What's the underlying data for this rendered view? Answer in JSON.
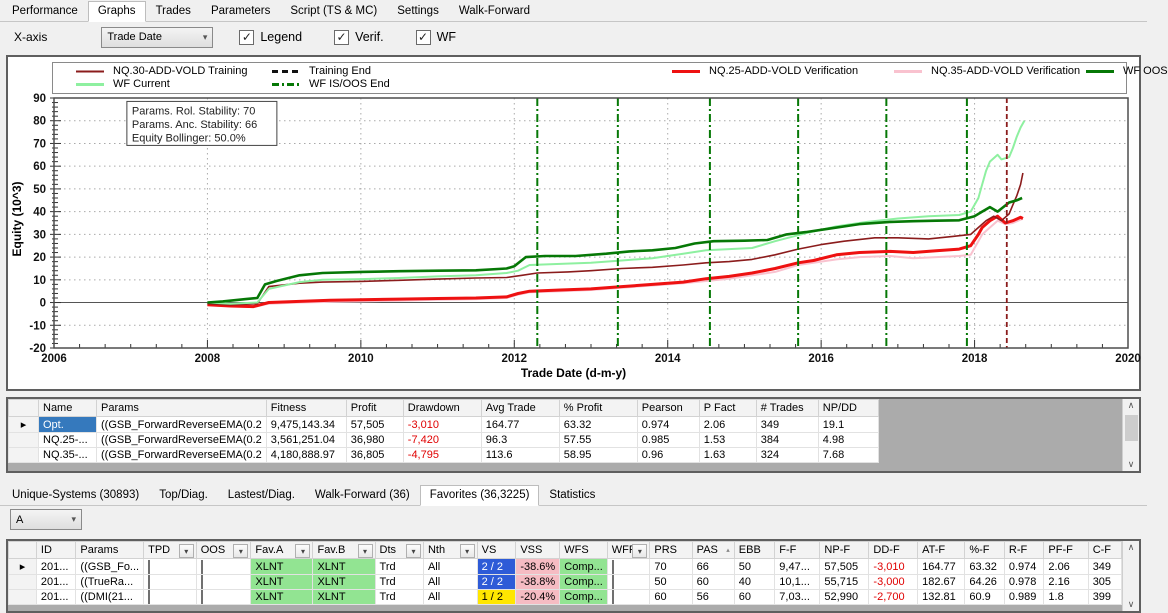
{
  "top_tabs": {
    "items": [
      "Performance",
      "Graphs",
      "Trades",
      "Parameters",
      "Script (TS & MC)",
      "Settings",
      "Walk-Forward"
    ],
    "active": "Graphs"
  },
  "toolbar": {
    "xaxis_label": "X-axis",
    "xaxis_value": "Trade Date",
    "checkboxes": [
      {
        "label": "Legend",
        "checked": true
      },
      {
        "label": "Verif.",
        "checked": true
      },
      {
        "label": "WF",
        "checked": true
      }
    ]
  },
  "chart_data": {
    "type": "line",
    "xlabel": "Trade Date (d-m-y)",
    "ylabel": "Equity (10^3)",
    "xlim": [
      2006,
      2020
    ],
    "ylim": [
      -20,
      90
    ],
    "x_ticks": [
      2006,
      2008,
      2010,
      2012,
      2014,
      2016,
      2018,
      2020
    ],
    "y_ticks": [
      -20,
      -10,
      0,
      10,
      20,
      30,
      40,
      50,
      60,
      70,
      80,
      90
    ],
    "grid": true,
    "legend_position": "top",
    "annotation": [
      "Params. Rol. Stability: 70",
      "Params. Anc. Stability: 66",
      "Equity Bollinger: 50.0%"
    ],
    "legend_rows": [
      [
        {
          "label": "NQ.30-ADD-VOLD Training",
          "color": "#8b1c1c",
          "dash": "",
          "w": 2
        },
        {
          "label": "Training End",
          "color": "#111111",
          "dash": "6,4",
          "w": 3
        },
        {
          "label": "NQ.25-ADD-VOLD Verification",
          "color": "#ee1111",
          "dash": "",
          "w": 3
        },
        {
          "label": "NQ.35-ADD-VOLD Verification",
          "color": "#f9c2cf",
          "dash": "",
          "w": 3
        },
        {
          "label": "WF OOS",
          "color": "#067806",
          "dash": "",
          "w": 3
        }
      ],
      [
        {
          "label": "WF Current",
          "color": "#8ef0a0",
          "dash": "",
          "w": 3
        },
        {
          "label": "WF IS/OOS End",
          "color": "#067806",
          "dash": "7,3,2,3",
          "w": 3
        }
      ]
    ],
    "vlines": {
      "wf_is_oos_end": {
        "x": [
          2012.3,
          2013.35,
          2014.55,
          2015.7,
          2016.85,
          2017.9
        ],
        "color": "#067806",
        "dash": "8,3,2,3"
      },
      "training_end": {
        "x": [
          2018.42
        ],
        "color": "#8b1c1c",
        "dash": "5,3"
      }
    },
    "series": [
      {
        "name": "NQ.35-ADD-VOLD Verification",
        "color": "#f9c2cf",
        "width": 2,
        "points": [
          [
            2008,
            -1
          ],
          [
            2008.3,
            -1.6
          ],
          [
            2008.6,
            -2
          ],
          [
            2008.8,
            -0.5
          ],
          [
            2009.2,
            0
          ],
          [
            2009.6,
            0.3
          ],
          [
            2010,
            0.5
          ],
          [
            2010.5,
            0.8
          ],
          [
            2011,
            1.2
          ],
          [
            2011.5,
            1.5
          ],
          [
            2011.9,
            2
          ],
          [
            2012.05,
            3.5
          ],
          [
            2012.2,
            4.5
          ],
          [
            2012.6,
            5
          ],
          [
            2013,
            5.5
          ],
          [
            2013.4,
            6.5
          ],
          [
            2013.8,
            7.5
          ],
          [
            2014.2,
            8.5
          ],
          [
            2014.5,
            9.5
          ],
          [
            2014.8,
            10.5
          ],
          [
            2015.1,
            12
          ],
          [
            2015.4,
            13.5
          ],
          [
            2015.7,
            16.5
          ],
          [
            2015.9,
            17.5
          ],
          [
            2016.2,
            19
          ],
          [
            2016.5,
            20
          ],
          [
            2016.9,
            20.5
          ],
          [
            2017.2,
            19.5
          ],
          [
            2017.5,
            20
          ],
          [
            2017.8,
            20.5
          ],
          [
            2017.95,
            21
          ],
          [
            2018.05,
            27
          ],
          [
            2018.1,
            30
          ],
          [
            2018.2,
            33
          ],
          [
            2018.3,
            36
          ],
          [
            2018.4,
            34.5
          ],
          [
            2018.5,
            35
          ],
          [
            2018.6,
            36.5
          ],
          [
            2018.63,
            36.8
          ]
        ]
      },
      {
        "name": "NQ.25-ADD-VOLD Verification",
        "color": "#ee1111",
        "width": 3,
        "points": [
          [
            2008,
            -1
          ],
          [
            2008.3,
            -1.5
          ],
          [
            2008.6,
            -1.8
          ],
          [
            2008.8,
            0
          ],
          [
            2009.2,
            0.5
          ],
          [
            2009.6,
            1
          ],
          [
            2010,
            1.2
          ],
          [
            2010.5,
            1.5
          ],
          [
            2011,
            1.8
          ],
          [
            2011.5,
            2
          ],
          [
            2011.9,
            2.5
          ],
          [
            2012.05,
            4
          ],
          [
            2012.2,
            5
          ],
          [
            2012.6,
            5.5
          ],
          [
            2013,
            6
          ],
          [
            2013.4,
            7
          ],
          [
            2013.8,
            8
          ],
          [
            2014.2,
            9
          ],
          [
            2014.5,
            10.5
          ],
          [
            2014.8,
            11.5
          ],
          [
            2015.1,
            13
          ],
          [
            2015.4,
            15
          ],
          [
            2015.7,
            17.5
          ],
          [
            2015.9,
            18.5
          ],
          [
            2016.2,
            21
          ],
          [
            2016.5,
            22
          ],
          [
            2016.9,
            22.5
          ],
          [
            2017.2,
            22
          ],
          [
            2017.5,
            22.8
          ],
          [
            2017.8,
            23.5
          ],
          [
            2017.95,
            25
          ],
          [
            2018.05,
            30
          ],
          [
            2018.1,
            33
          ],
          [
            2018.2,
            36
          ],
          [
            2018.3,
            38
          ],
          [
            2018.4,
            35
          ],
          [
            2018.5,
            36
          ],
          [
            2018.6,
            37.5
          ],
          [
            2018.63,
            37
          ]
        ]
      },
      {
        "name": "NQ.30-ADD-VOLD Training",
        "color": "#8b1c1c",
        "width": 1.6,
        "points": [
          [
            2008,
            -0.5
          ],
          [
            2008.3,
            -1
          ],
          [
            2008.65,
            -0.5
          ],
          [
            2008.8,
            7
          ],
          [
            2009.2,
            8.5
          ],
          [
            2009.5,
            9
          ],
          [
            2010,
            9.3
          ],
          [
            2010.5,
            9.8
          ],
          [
            2011,
            10.3
          ],
          [
            2011.5,
            10.8
          ],
          [
            2011.9,
            11
          ],
          [
            2012.1,
            12
          ],
          [
            2012.3,
            13
          ],
          [
            2012.7,
            13.5
          ],
          [
            2013,
            14
          ],
          [
            2013.4,
            15
          ],
          [
            2013.8,
            15.5
          ],
          [
            2014.2,
            16.5
          ],
          [
            2014.5,
            17.5
          ],
          [
            2014.8,
            18
          ],
          [
            2015.1,
            19
          ],
          [
            2015.4,
            21
          ],
          [
            2015.7,
            23.5
          ],
          [
            2016,
            25.5
          ],
          [
            2016.3,
            27
          ],
          [
            2016.7,
            28.5
          ],
          [
            2017,
            28.5
          ],
          [
            2017.4,
            28
          ],
          [
            2017.7,
            29
          ],
          [
            2017.95,
            30
          ],
          [
            2018.05,
            33
          ],
          [
            2018.15,
            36
          ],
          [
            2018.25,
            38
          ],
          [
            2018.35,
            36
          ],
          [
            2018.45,
            39
          ],
          [
            2018.5,
            43
          ],
          [
            2018.55,
            47
          ],
          [
            2018.6,
            52
          ],
          [
            2018.63,
            57
          ]
        ]
      },
      {
        "name": "WF Current",
        "color": "#8ef0a0",
        "width": 2,
        "points": [
          [
            2008,
            0
          ],
          [
            2008.3,
            -0.5
          ],
          [
            2008.65,
            0
          ],
          [
            2008.8,
            6
          ],
          [
            2009.2,
            9
          ],
          [
            2009.5,
            10
          ],
          [
            2010,
            10.3
          ],
          [
            2010.5,
            10.8
          ],
          [
            2011,
            11.5
          ],
          [
            2011.5,
            12
          ],
          [
            2011.9,
            13
          ],
          [
            2012.05,
            14
          ],
          [
            2012.2,
            16.5
          ],
          [
            2012.6,
            17
          ],
          [
            2013,
            17.5
          ],
          [
            2013.4,
            18.5
          ],
          [
            2013.8,
            19.5
          ],
          [
            2014.2,
            21.5
          ],
          [
            2014.5,
            23
          ],
          [
            2014.8,
            23.5
          ],
          [
            2015.1,
            24
          ],
          [
            2015.4,
            27
          ],
          [
            2015.8,
            30.5
          ],
          [
            2016.2,
            33.5
          ],
          [
            2016.6,
            35.5
          ],
          [
            2017,
            37
          ],
          [
            2017.4,
            38
          ],
          [
            2017.8,
            38.5
          ],
          [
            2017.95,
            40
          ],
          [
            2018.05,
            46
          ],
          [
            2018.1,
            52
          ],
          [
            2018.15,
            58
          ],
          [
            2018.2,
            62
          ],
          [
            2018.3,
            65
          ],
          [
            2018.35,
            63
          ],
          [
            2018.45,
            64
          ],
          [
            2018.5,
            68
          ],
          [
            2018.55,
            73
          ],
          [
            2018.6,
            77
          ],
          [
            2018.65,
            80
          ]
        ]
      },
      {
        "name": "WF OOS",
        "color": "#067806",
        "width": 2.6,
        "points": [
          [
            2008,
            0
          ],
          [
            2008.2,
            0.5
          ],
          [
            2008.5,
            1.5
          ],
          [
            2008.65,
            2
          ],
          [
            2008.75,
            8
          ],
          [
            2008.9,
            9.5
          ],
          [
            2009.2,
            12
          ],
          [
            2009.5,
            13
          ],
          [
            2010,
            13.5
          ],
          [
            2010.5,
            13.8
          ],
          [
            2011,
            14
          ],
          [
            2011.5,
            14.2
          ],
          [
            2011.9,
            15
          ],
          [
            2012,
            16
          ],
          [
            2012.15,
            20
          ],
          [
            2012.4,
            20.5
          ],
          [
            2012.8,
            20.5
          ],
          [
            2013.2,
            21.5
          ],
          [
            2013.5,
            22.5
          ],
          [
            2013.8,
            23
          ],
          [
            2014.1,
            24
          ],
          [
            2014.35,
            26
          ],
          [
            2014.6,
            27
          ],
          [
            2015,
            27.2
          ],
          [
            2015.3,
            27.5
          ],
          [
            2015.55,
            30
          ],
          [
            2015.8,
            31
          ],
          [
            2016.1,
            32.5
          ],
          [
            2016.5,
            34.5
          ],
          [
            2016.9,
            35.5
          ],
          [
            2017.2,
            35.8
          ],
          [
            2017.5,
            36
          ],
          [
            2017.8,
            36.2
          ],
          [
            2018,
            38
          ],
          [
            2018.1,
            40
          ],
          [
            2018.2,
            42
          ],
          [
            2018.3,
            40
          ],
          [
            2018.45,
            44
          ],
          [
            2018.55,
            45
          ],
          [
            2018.62,
            46
          ]
        ]
      }
    ]
  },
  "results_table": {
    "columns": [
      "Name",
      "Params",
      "Fitness",
      "Profit",
      "Drawdown",
      "Avg Trade",
      "% Profit",
      "Pearson",
      "P Fact",
      "# Trades",
      "NP/DD"
    ],
    "rows": [
      {
        "name": "Opt.",
        "params": "((GSB_ForwardReverseEMA(0.2",
        "fitness": "9,475,143.34",
        "profit": "57,505",
        "drawdown": "-3,010",
        "avg_trade": "164.77",
        "pct_profit": "63.32",
        "pearson": "0.974",
        "p_fact": "2.06",
        "trades": "349",
        "npdd": "19.1",
        "selected": true
      },
      {
        "name": "NQ.25-...",
        "params": "((GSB_ForwardReverseEMA(0.2",
        "fitness": "3,561,251.04",
        "profit": "36,980",
        "drawdown": "-7,420",
        "avg_trade": "96.3",
        "pct_profit": "57.55",
        "pearson": "0.985",
        "p_fact": "1.53",
        "trades": "384",
        "npdd": "4.98",
        "selected": false
      },
      {
        "name": "NQ.35-...",
        "params": "((GSB_ForwardReverseEMA(0.2",
        "fitness": "4,180,888.97",
        "profit": "36,805",
        "drawdown": "-4,795",
        "avg_trade": "113.6",
        "pct_profit": "58.95",
        "pearson": "0.96",
        "p_fact": "1.63",
        "trades": "324",
        "npdd": "7.68",
        "selected": false
      }
    ]
  },
  "bottom_tabs": {
    "items": [
      "Unique-Systems (30893)",
      "Top/Diag.",
      "Lastest/Diag.",
      "Walk-Forward (36)",
      "Favorites (36,3225)",
      "Statistics"
    ],
    "active": "Favorites (36,3225)"
  },
  "favorites": {
    "filter_value": "A",
    "columns": [
      "ID",
      "Params",
      "TPD",
      "OOS",
      "Fav.A",
      "Fav.B",
      "Dts",
      "Nth",
      "VS",
      "VSS",
      "WFS",
      "WFP",
      "PRS",
      "PAS",
      "EBB",
      "F-F",
      "NP-F",
      "DD-F",
      "AT-F",
      "%-F",
      "R-F",
      "PF-F",
      "C-F"
    ],
    "filter_columns": [
      "TPD",
      "OOS",
      "Fav.A",
      "Fav.B",
      "Dts",
      "Nth",
      "WFP"
    ],
    "sorted_column": "PAS",
    "rows": [
      {
        "id": "201...",
        "params": "((GSB_Fo...",
        "tpd": false,
        "oos": false,
        "fav_a": "XLNT",
        "fav_b": "XLNT",
        "dts": "Trd",
        "nth": "All",
        "vs": "2 / 2",
        "vs_color": "blue",
        "vss": "-38.6%",
        "wfs": "Comp...",
        "wfp": false,
        "prs": "70",
        "pas": "66",
        "ebb": "50",
        "f_f": "9,47...",
        "np_f": "57,505",
        "dd_f": "-3,010",
        "at_f": "164.77",
        "pct_f": "63.32",
        "r_f": "0.974",
        "pf_f": "2.06",
        "c_f": "349"
      },
      {
        "id": "201...",
        "params": "((TrueRa...",
        "tpd": false,
        "oos": false,
        "fav_a": "XLNT",
        "fav_b": "XLNT",
        "dts": "Trd",
        "nth": "All",
        "vs": "2 / 2",
        "vs_color": "blue",
        "vss": "-38.8%",
        "wfs": "Comp...",
        "wfp": false,
        "prs": "50",
        "pas": "60",
        "ebb": "40",
        "f_f": "10,1...",
        "np_f": "55,715",
        "dd_f": "-3,000",
        "at_f": "182.67",
        "pct_f": "64.26",
        "r_f": "0.978",
        "pf_f": "2.16",
        "c_f": "305"
      },
      {
        "id": "201...",
        "params": "((DMI(21...",
        "tpd": false,
        "oos": false,
        "fav_a": "XLNT",
        "fav_b": "XLNT",
        "dts": "Trd",
        "nth": "All",
        "vs": "1 / 2",
        "vs_color": "yellow",
        "vss": "-20.4%",
        "wfs": "Comp...",
        "wfp": false,
        "prs": "60",
        "pas": "56",
        "ebb": "60",
        "f_f": "7,03...",
        "np_f": "52,990",
        "dd_f": "-2,700",
        "at_f": "132.81",
        "pct_f": "60.9",
        "r_f": "0.989",
        "pf_f": "1.8",
        "c_f": "399"
      }
    ]
  }
}
